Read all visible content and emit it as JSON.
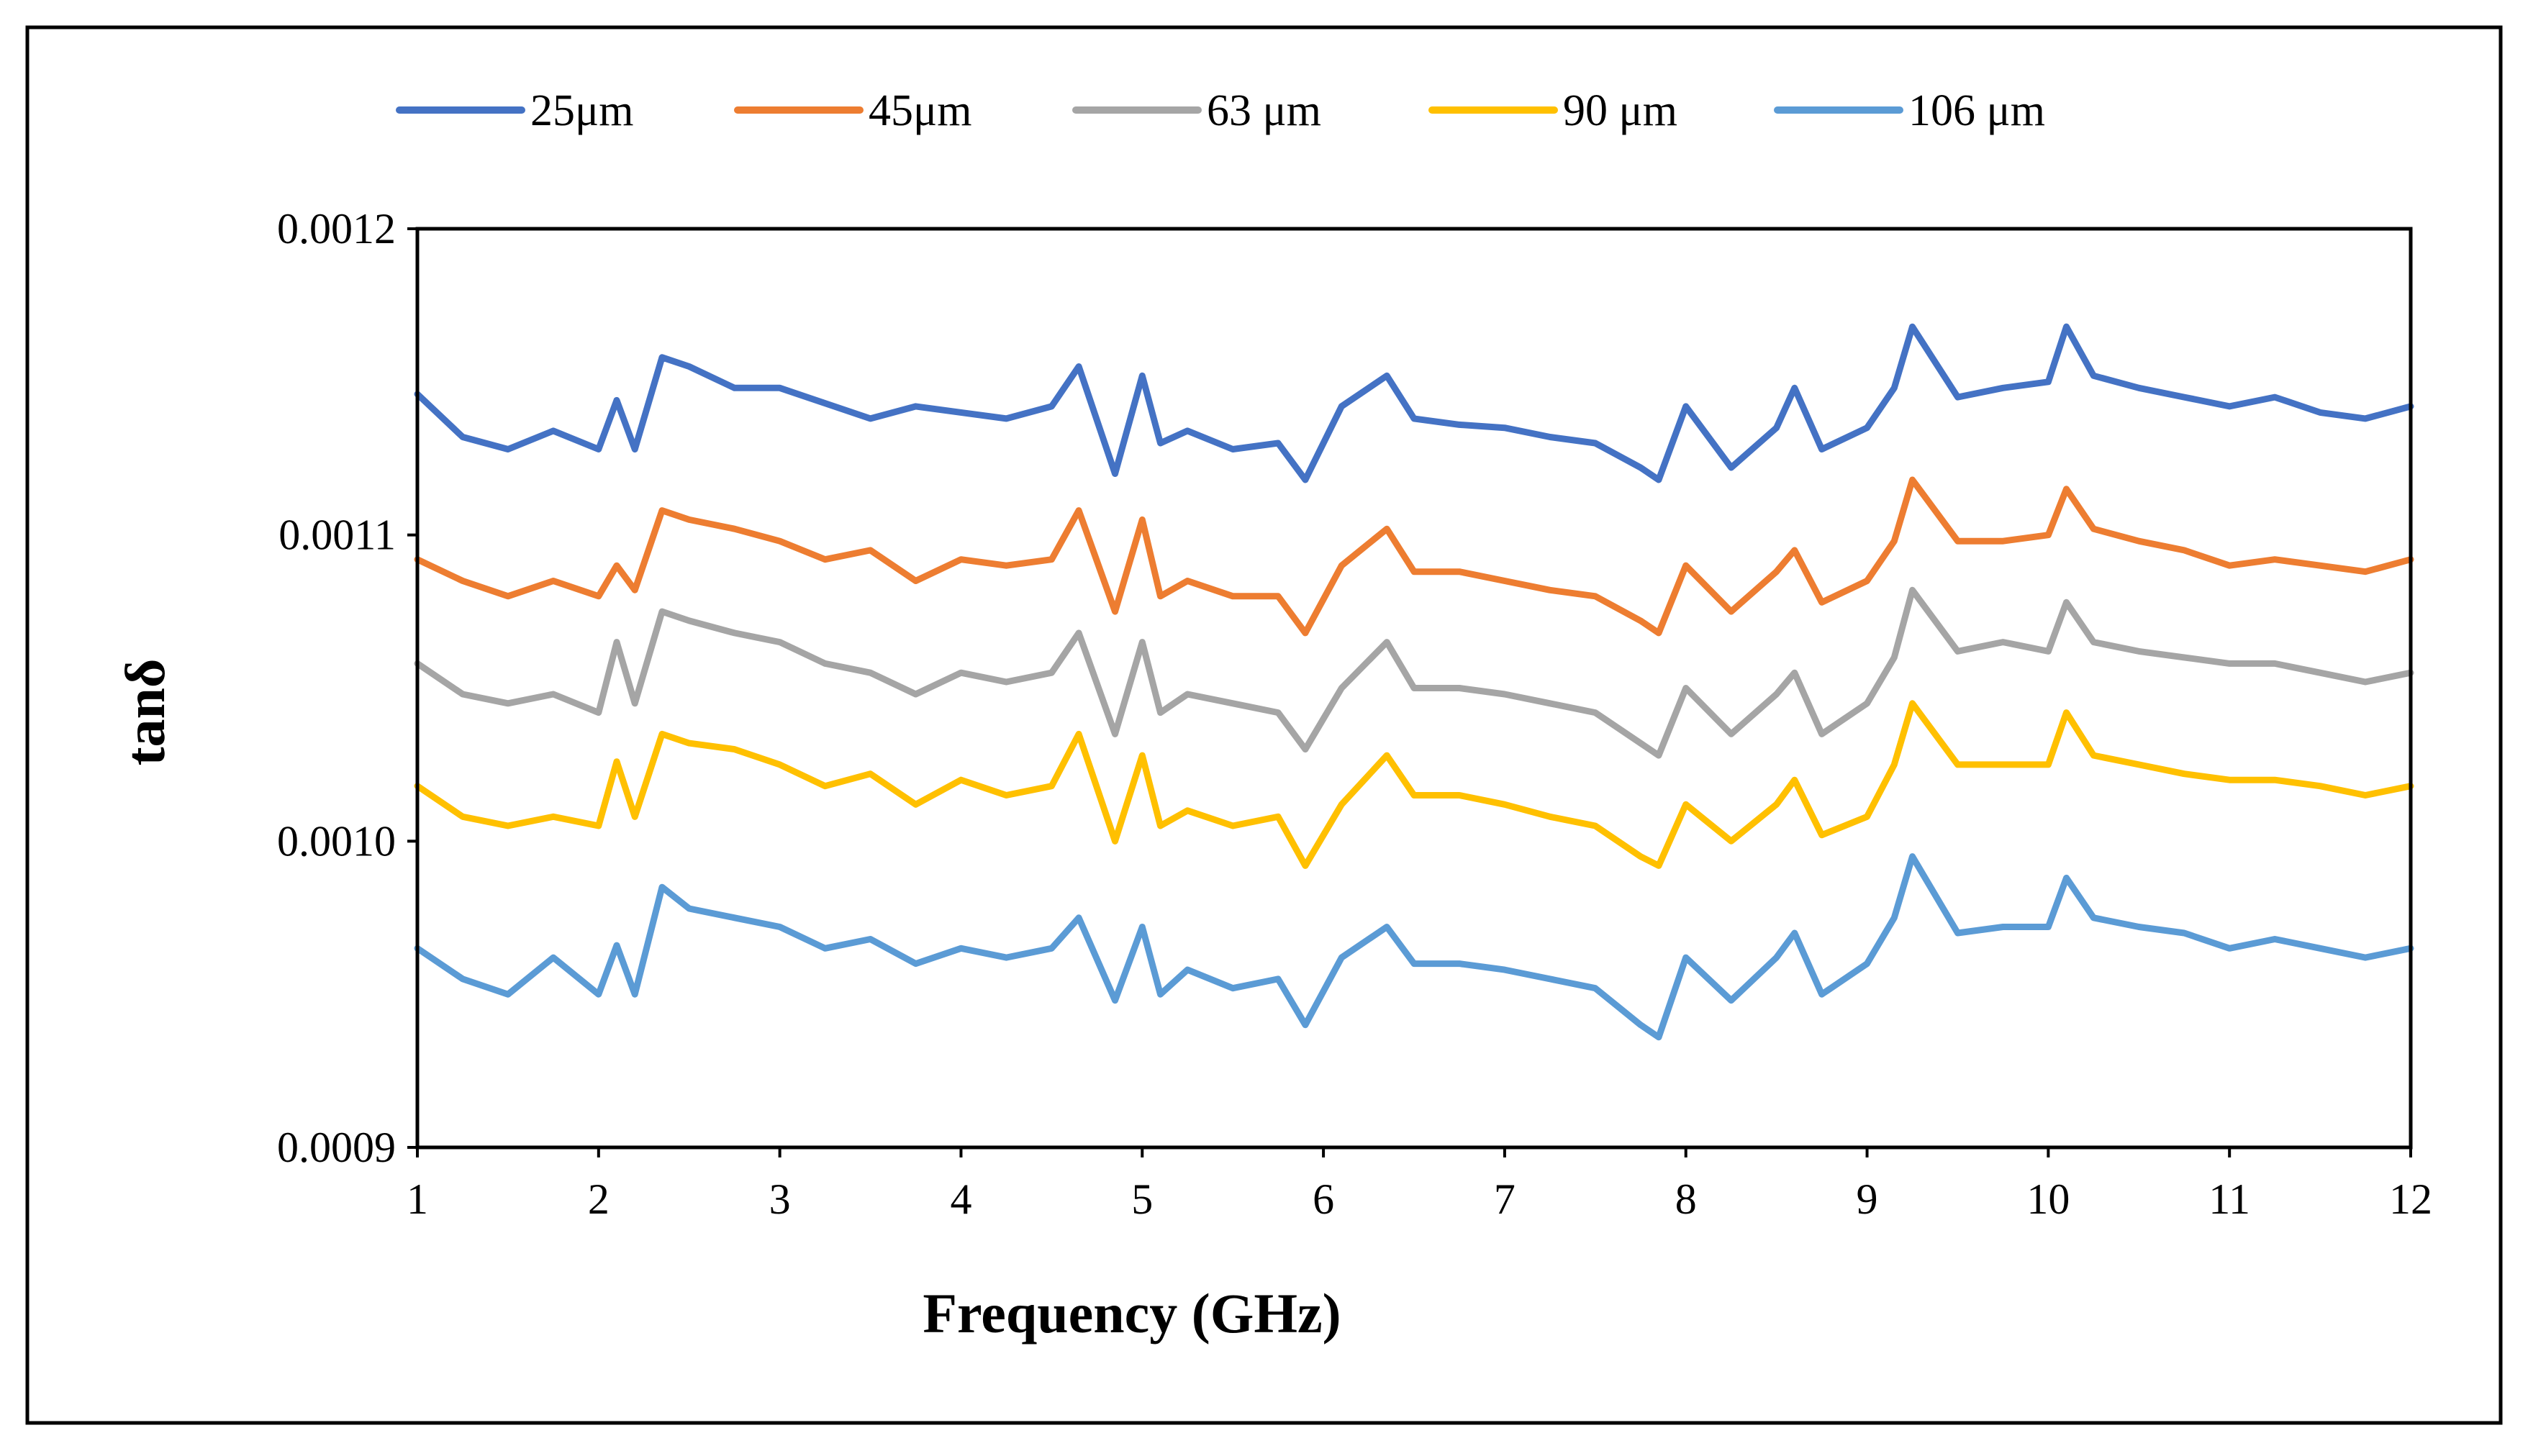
{
  "chart_data": {
    "type": "line",
    "title": "",
    "xlabel": "Frequency (GHz)",
    "ylabel": "tanδ",
    "xlim": [
      1,
      12
    ],
    "ylim": [
      0.0009,
      0.0012
    ],
    "xticks": [
      1,
      2,
      3,
      4,
      5,
      6,
      7,
      8,
      9,
      10,
      11,
      12
    ],
    "xtick_labels": [
      "1",
      "2",
      "3",
      "4",
      "5",
      "6",
      "7",
      "8",
      "9",
      "10",
      "11",
      "12"
    ],
    "yticks": [
      0.0009,
      0.001,
      0.0011,
      0.0012
    ],
    "ytick_labels": [
      "0.0009",
      "0.0010",
      "0.0011",
      "0.0012"
    ],
    "grid": false,
    "legend_position": "top",
    "x": [
      1.0,
      1.25,
      1.5,
      1.75,
      2.0,
      2.1,
      2.2,
      2.35,
      2.5,
      2.75,
      3.0,
      3.25,
      3.5,
      3.75,
      4.0,
      4.25,
      4.5,
      4.65,
      4.85,
      5.0,
      5.1,
      5.25,
      5.5,
      5.75,
      5.9,
      6.1,
      6.35,
      6.5,
      6.75,
      7.0,
      7.25,
      7.5,
      7.75,
      7.85,
      8.0,
      8.25,
      8.5,
      8.6,
      8.75,
      9.0,
      9.15,
      9.25,
      9.5,
      9.75,
      10.0,
      10.1,
      10.25,
      10.5,
      10.75,
      11.0,
      11.25,
      11.5,
      11.75,
      12.0
    ],
    "series": [
      {
        "name": "25μm",
        "color": "#4472C4",
        "values": [
          0.001146,
          0.001132,
          0.001128,
          0.001134,
          0.001128,
          0.001144,
          0.001128,
          0.001158,
          0.001155,
          0.001148,
          0.001148,
          0.001143,
          0.001138,
          0.001142,
          0.00114,
          0.001138,
          0.001142,
          0.001155,
          0.00112,
          0.001152,
          0.00113,
          0.001134,
          0.001128,
          0.00113,
          0.001118,
          0.001142,
          0.001152,
          0.001138,
          0.001136,
          0.001135,
          0.001132,
          0.00113,
          0.001122,
          0.001118,
          0.001142,
          0.001122,
          0.001135,
          0.001148,
          0.001128,
          0.001135,
          0.001148,
          0.001168,
          0.001145,
          0.001148,
          0.00115,
          0.001168,
          0.001152,
          0.001148,
          0.001145,
          0.001142,
          0.001145,
          0.00114,
          0.001138,
          0.001142
        ]
      },
      {
        "name": "45μm",
        "color": "#ED7D31",
        "values": [
          0.001092,
          0.001085,
          0.00108,
          0.001085,
          0.00108,
          0.00109,
          0.001082,
          0.001108,
          0.001105,
          0.001102,
          0.001098,
          0.001092,
          0.001095,
          0.001085,
          0.001092,
          0.00109,
          0.001092,
          0.001108,
          0.001075,
          0.001105,
          0.00108,
          0.001085,
          0.00108,
          0.00108,
          0.001068,
          0.00109,
          0.001102,
          0.001088,
          0.001088,
          0.001085,
          0.001082,
          0.00108,
          0.001072,
          0.001068,
          0.00109,
          0.001075,
          0.001088,
          0.001095,
          0.001078,
          0.001085,
          0.001098,
          0.001118,
          0.001098,
          0.001098,
          0.0011,
          0.001115,
          0.001102,
          0.001098,
          0.001095,
          0.00109,
          0.001092,
          0.00109,
          0.001088,
          0.001092
        ]
      },
      {
        "name": "63 μm",
        "color": "#A5A5A5",
        "values": [
          0.001058,
          0.001048,
          0.001045,
          0.001048,
          0.001042,
          0.001065,
          0.001045,
          0.001075,
          0.001072,
          0.001068,
          0.001065,
          0.001058,
          0.001055,
          0.001048,
          0.001055,
          0.001052,
          0.001055,
          0.001068,
          0.001035,
          0.001065,
          0.001042,
          0.001048,
          0.001045,
          0.001042,
          0.00103,
          0.00105,
          0.001065,
          0.00105,
          0.00105,
          0.001048,
          0.001045,
          0.001042,
          0.001032,
          0.001028,
          0.00105,
          0.001035,
          0.001048,
          0.001055,
          0.001035,
          0.001045,
          0.00106,
          0.001082,
          0.001062,
          0.001065,
          0.001062,
          0.001078,
          0.001065,
          0.001062,
          0.00106,
          0.001058,
          0.001058,
          0.001055,
          0.001052,
          0.001055
        ]
      },
      {
        "name": "90 μm",
        "color": "#FFC000",
        "values": [
          0.001018,
          0.001008,
          0.001005,
          0.001008,
          0.001005,
          0.001026,
          0.001008,
          0.001035,
          0.001032,
          0.00103,
          0.001025,
          0.001018,
          0.001022,
          0.001012,
          0.00102,
          0.001015,
          0.001018,
          0.001035,
          0.001,
          0.001028,
          0.001005,
          0.00101,
          0.001005,
          0.001008,
          0.000992,
          0.001012,
          0.001028,
          0.001015,
          0.001015,
          0.001012,
          0.001008,
          0.001005,
          0.000995,
          0.000992,
          0.001012,
          0.001,
          0.001012,
          0.00102,
          0.001002,
          0.001008,
          0.001025,
          0.001045,
          0.001025,
          0.001025,
          0.001025,
          0.001042,
          0.001028,
          0.001025,
          0.001022,
          0.00102,
          0.00102,
          0.001018,
          0.001015,
          0.001018
        ]
      },
      {
        "name": "106 μm",
        "color": "#5B9BD5",
        "values": [
          0.000965,
          0.000955,
          0.00095,
          0.000962,
          0.00095,
          0.000966,
          0.00095,
          0.000985,
          0.000978,
          0.000975,
          0.000972,
          0.000965,
          0.000968,
          0.00096,
          0.000965,
          0.000962,
          0.000965,
          0.000975,
          0.000948,
          0.000972,
          0.00095,
          0.000958,
          0.000952,
          0.000955,
          0.00094,
          0.000962,
          0.000972,
          0.00096,
          0.00096,
          0.000958,
          0.000955,
          0.000952,
          0.00094,
          0.000936,
          0.000962,
          0.000948,
          0.000962,
          0.00097,
          0.00095,
          0.00096,
          0.000975,
          0.000995,
          0.00097,
          0.000972,
          0.000972,
          0.000988,
          0.000975,
          0.000972,
          0.00097,
          0.000965,
          0.000968,
          0.000965,
          0.000962,
          0.000965
        ]
      }
    ]
  }
}
